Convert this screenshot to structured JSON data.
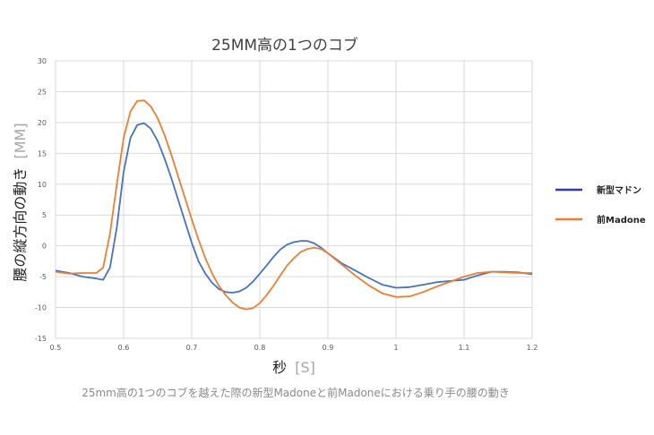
{
  "chart_data": {
    "type": "line",
    "title": "25MM高の1つのコブ",
    "xlabel": "秒",
    "xlabel_unit": "[S]",
    "ylabel": "腰の縦方向の動き",
    "ylabel_unit": "[MM]",
    "xlim": [
      0.5,
      1.2
    ],
    "ylim": [
      -15,
      30
    ],
    "grid": true,
    "legend_position": "right",
    "x_ticks": [
      0.5,
      0.6,
      0.7,
      0.8,
      0.9,
      1.0,
      1.1,
      1.2
    ],
    "x_tick_labels": [
      "0.5",
      "0.6",
      "0.7",
      "0.8",
      "0.9",
      "1",
      "1.1",
      "1.2"
    ],
    "y_ticks": [
      30,
      25,
      20,
      15,
      10,
      5,
      0,
      -5,
      -10,
      -15
    ],
    "y_tick_labels": [
      "30",
      "25",
      "20",
      "15",
      "10",
      "5",
      "0",
      "-5",
      "-10",
      "-15"
    ],
    "series": [
      {
        "name": "新型マドン",
        "color": "#4472c4",
        "points": [
          [
            0.5,
            -4.0
          ],
          [
            0.52,
            -4.4
          ],
          [
            0.54,
            -5.0
          ],
          [
            0.56,
            -5.3
          ],
          [
            0.57,
            -5.5
          ],
          [
            0.58,
            -3.5
          ],
          [
            0.59,
            3.0
          ],
          [
            0.6,
            12.0
          ],
          [
            0.61,
            17.5
          ],
          [
            0.62,
            19.6
          ],
          [
            0.63,
            19.9
          ],
          [
            0.64,
            19.0
          ],
          [
            0.65,
            17.0
          ],
          [
            0.66,
            14.2
          ],
          [
            0.67,
            11.0
          ],
          [
            0.68,
            7.5
          ],
          [
            0.69,
            4.0
          ],
          [
            0.7,
            0.5
          ],
          [
            0.71,
            -2.5
          ],
          [
            0.72,
            -4.5
          ],
          [
            0.73,
            -6.0
          ],
          [
            0.74,
            -7.0
          ],
          [
            0.75,
            -7.5
          ],
          [
            0.76,
            -7.6
          ],
          [
            0.77,
            -7.4
          ],
          [
            0.78,
            -6.8
          ],
          [
            0.79,
            -5.8
          ],
          [
            0.8,
            -4.5
          ],
          [
            0.81,
            -3.2
          ],
          [
            0.82,
            -1.8
          ],
          [
            0.83,
            -0.6
          ],
          [
            0.84,
            0.2
          ],
          [
            0.85,
            0.6
          ],
          [
            0.86,
            0.8
          ],
          [
            0.87,
            0.8
          ],
          [
            0.88,
            0.4
          ],
          [
            0.89,
            -0.3
          ],
          [
            0.9,
            -1.2
          ],
          [
            0.92,
            -2.8
          ],
          [
            0.94,
            -4.0
          ],
          [
            0.96,
            -5.2
          ],
          [
            0.98,
            -6.3
          ],
          [
            1.0,
            -6.8
          ],
          [
            1.02,
            -6.7
          ],
          [
            1.04,
            -6.3
          ],
          [
            1.06,
            -5.9
          ],
          [
            1.08,
            -5.7
          ],
          [
            1.1,
            -5.5
          ],
          [
            1.12,
            -4.8
          ],
          [
            1.14,
            -4.2
          ],
          [
            1.16,
            -4.2
          ],
          [
            1.18,
            -4.3
          ],
          [
            1.2,
            -4.6
          ]
        ]
      },
      {
        "name": "前Madone",
        "color": "#ed7d31",
        "points": [
          [
            0.5,
            -4.2
          ],
          [
            0.52,
            -4.5
          ],
          [
            0.54,
            -4.4
          ],
          [
            0.56,
            -4.4
          ],
          [
            0.57,
            -3.5
          ],
          [
            0.58,
            2.0
          ],
          [
            0.59,
            10.0
          ],
          [
            0.6,
            17.5
          ],
          [
            0.61,
            21.8
          ],
          [
            0.62,
            23.5
          ],
          [
            0.63,
            23.6
          ],
          [
            0.64,
            22.6
          ],
          [
            0.65,
            20.7
          ],
          [
            0.66,
            18.0
          ],
          [
            0.67,
            14.8
          ],
          [
            0.68,
            11.3
          ],
          [
            0.69,
            7.8
          ],
          [
            0.7,
            4.3
          ],
          [
            0.71,
            1.0
          ],
          [
            0.72,
            -2.0
          ],
          [
            0.73,
            -4.5
          ],
          [
            0.74,
            -6.5
          ],
          [
            0.75,
            -8.0
          ],
          [
            0.76,
            -9.2
          ],
          [
            0.77,
            -10.0
          ],
          [
            0.78,
            -10.3
          ],
          [
            0.79,
            -10.1
          ],
          [
            0.8,
            -9.3
          ],
          [
            0.81,
            -8.0
          ],
          [
            0.82,
            -6.5
          ],
          [
            0.83,
            -4.8
          ],
          [
            0.84,
            -3.2
          ],
          [
            0.85,
            -2.0
          ],
          [
            0.86,
            -1.0
          ],
          [
            0.87,
            -0.5
          ],
          [
            0.88,
            -0.3
          ],
          [
            0.89,
            -0.5
          ],
          [
            0.9,
            -1.2
          ],
          [
            0.92,
            -3.0
          ],
          [
            0.94,
            -4.8
          ],
          [
            0.96,
            -6.4
          ],
          [
            0.98,
            -7.7
          ],
          [
            1.0,
            -8.3
          ],
          [
            1.02,
            -8.2
          ],
          [
            1.04,
            -7.5
          ],
          [
            1.06,
            -6.6
          ],
          [
            1.08,
            -5.8
          ],
          [
            1.1,
            -5.0
          ],
          [
            1.12,
            -4.4
          ],
          [
            1.14,
            -4.2
          ],
          [
            1.16,
            -4.3
          ],
          [
            1.18,
            -4.4
          ],
          [
            1.2,
            -4.4
          ]
        ]
      }
    ]
  },
  "caption": "25mm高の1つのコブを越えた際の新型Madoneと前Madoneにおける乗り手の腰の動き"
}
